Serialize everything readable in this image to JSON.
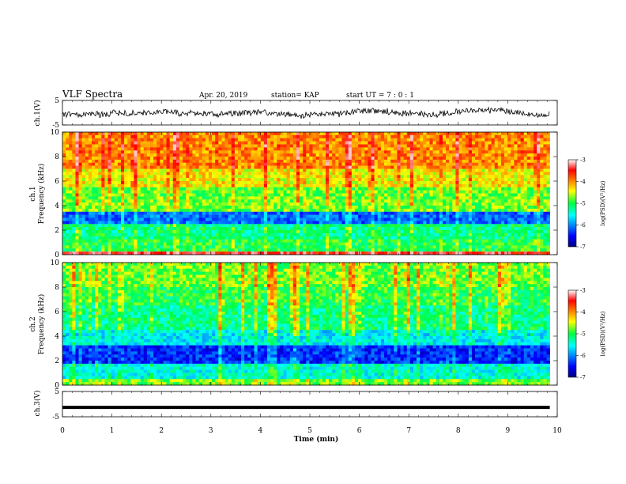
{
  "header": {
    "title": "VLF Spectra",
    "date": "Apr. 20, 2019",
    "station": "station= KAP",
    "start_time": "start  UT =   7 : 0  : 1"
  },
  "chart_data": [
    {
      "type": "line",
      "panel": "ch1-waveform",
      "ylabel": "ch.1(V)",
      "ylim": [
        -5,
        5
      ],
      "yticks": [
        5,
        -5
      ],
      "xlim": [
        0,
        10
      ],
      "series": [
        {
          "values_note": "",
          "color": "#000000"
        }
      ]
    },
    {
      "type": "heatmap",
      "panel": "ch1-spectrogram",
      "ylabel_line1": "ch.1",
      "ylabel_line2": "Frequency (kHz)",
      "ylim": [
        0,
        10
      ],
      "yticks": [
        0,
        2,
        4,
        6,
        8,
        10
      ],
      "xlim": [
        0,
        10
      ],
      "colorbar": {
        "label": "log(PSD)(V²/Hz)",
        "range": [
          -7,
          -3
        ],
        "ticks": [
          -3,
          -4,
          -5,
          -6,
          -7
        ]
      }
    },
    {
      "type": "heatmap",
      "panel": "ch2-spectrogram",
      "ylabel_line1": "ch.2",
      "ylabel_line2": "Frequency (kHz)",
      "ylim": [
        0,
        10
      ],
      "yticks": [
        0,
        2,
        4,
        6,
        8,
        10
      ],
      "xlim": [
        0,
        10
      ],
      "colorbar": {
        "label": "log(PSD)(V²/Hz)",
        "range": [
          -7,
          -3
        ],
        "ticks": [
          -3,
          -4,
          -5,
          -6,
          -7
        ]
      }
    },
    {
      "type": "line",
      "panel": "ch3-waveform",
      "ylabel": "ch.3(V)",
      "ylim": [
        -5,
        5
      ],
      "yticks": [
        5,
        -5
      ],
      "xlim": [
        0,
        10
      ],
      "series": [
        {
          "constant_value": -1.3,
          "color": "#000000"
        }
      ]
    }
  ],
  "xaxis": {
    "label": "Time (min)",
    "ticks": [
      0,
      1,
      2,
      3,
      4,
      5,
      6,
      7,
      8,
      9,
      10
    ],
    "data_end_min": 9.85
  }
}
